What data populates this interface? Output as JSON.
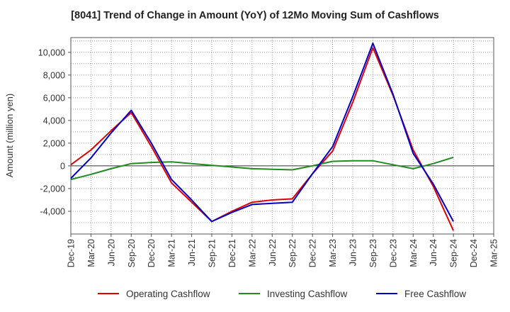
{
  "chart_data": {
    "type": "line",
    "title": "[8041]  Trend of Change in Amount (YoY) of 12Mo Moving Sum of Cashflows",
    "xlabel": "",
    "ylabel": "Amount (million yen)",
    "categories": [
      "Dec-19",
      "Mar-20",
      "Jun-20",
      "Sep-20",
      "Dec-20",
      "Mar-21",
      "Jun-21",
      "Sep-21",
      "Dec-21",
      "Mar-22",
      "Jun-22",
      "Sep-22",
      "Dec-22",
      "Mar-23",
      "Jun-23",
      "Sep-23",
      "Dec-23",
      "Mar-24",
      "Jun-24",
      "Sep-24",
      "Dec-24",
      "Mar-25"
    ],
    "ylim": [
      -6000,
      11300
    ],
    "yticks": [
      -4000,
      -2000,
      0,
      2000,
      4000,
      6000,
      8000,
      10000
    ],
    "ytick_labels": [
      "-4,000",
      "-2,000",
      "0",
      "2,000",
      "4,000",
      "6,000",
      "8,000",
      "10,000"
    ],
    "grid": true,
    "legend_position": "bottom",
    "series": [
      {
        "name": "Operating Cashflow",
        "color": "#e00000",
        "values": [
          100,
          1400,
          3100,
          4700,
          1700,
          -1500,
          -3200,
          -4900,
          -4000,
          -3200,
          -3000,
          -2900,
          -700,
          1300,
          5600,
          10400,
          6200,
          1400,
          -1800,
          -5700,
          null,
          null
        ]
      },
      {
        "name": "Investing Cashflow",
        "color": "#228b22",
        "values": [
          -1200,
          -750,
          -250,
          200,
          300,
          350,
          200,
          50,
          -100,
          -250,
          -300,
          -350,
          0,
          400,
          450,
          450,
          100,
          -250,
          200,
          750,
          null,
          null
        ]
      },
      {
        "name": "Free Cashflow",
        "color": "#0000cc",
        "values": [
          -1100,
          700,
          2900,
          4900,
          2000,
          -1200,
          -3000,
          -4900,
          -4100,
          -3400,
          -3300,
          -3200,
          -700,
          1700,
          6100,
          10800,
          6300,
          1100,
          -1600,
          -4900,
          null,
          null
        ]
      }
    ]
  }
}
